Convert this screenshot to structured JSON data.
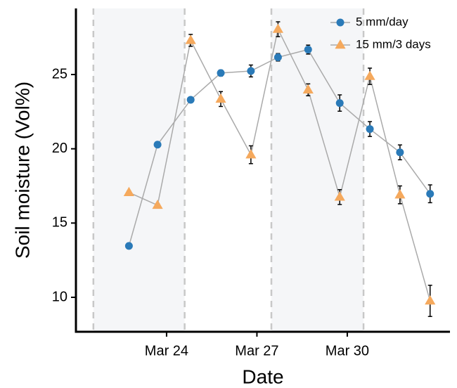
{
  "chart_data": {
    "type": "line",
    "x_label": "Date",
    "y_label": "Soil moisture (Vol%)",
    "x": [
      22.75,
      23.7,
      24.8,
      25.8,
      26.8,
      27.7,
      28.7,
      29.75,
      30.75,
      31.75,
      32.75
    ],
    "series": [
      {
        "name": "5 mm/day",
        "color": "#2a7ab8",
        "marker": "circle",
        "values": [
          13.46,
          20.28,
          23.3,
          25.1,
          25.24,
          26.16,
          26.68,
          23.08,
          21.33,
          19.76,
          16.97
        ],
        "errors": [
          0.1,
          0.1,
          0.15,
          0.2,
          0.4,
          0.25,
          0.3,
          0.55,
          0.5,
          0.5,
          0.6
        ]
      },
      {
        "name": "15 mm/3 days",
        "color": "#f5a95d",
        "marker": "triangle",
        "values": [
          17.06,
          16.2,
          27.3,
          23.35,
          19.6,
          28.05,
          23.97,
          16.75,
          24.88,
          16.9,
          9.76
        ],
        "errors": [
          0.1,
          0.1,
          0.4,
          0.5,
          0.6,
          0.5,
          0.4,
          0.5,
          0.55,
          0.6,
          1.05
        ]
      }
    ],
    "line_color": "#aaaaaa",
    "shaded_regions": [
      [
        21.57,
        24.6
      ],
      [
        27.48,
        30.54
      ]
    ],
    "xlim": [
      20.99,
      33.41
    ],
    "ylim": [
      7.68,
      29.45
    ],
    "xticks": [
      {
        "value": 24,
        "label": "Mar 24"
      },
      {
        "value": 27,
        "label": "Mar 27"
      },
      {
        "value": 30,
        "label": "Mar 30"
      }
    ],
    "yticks": [
      10,
      15,
      20,
      25
    ],
    "legend": "top-right"
  }
}
